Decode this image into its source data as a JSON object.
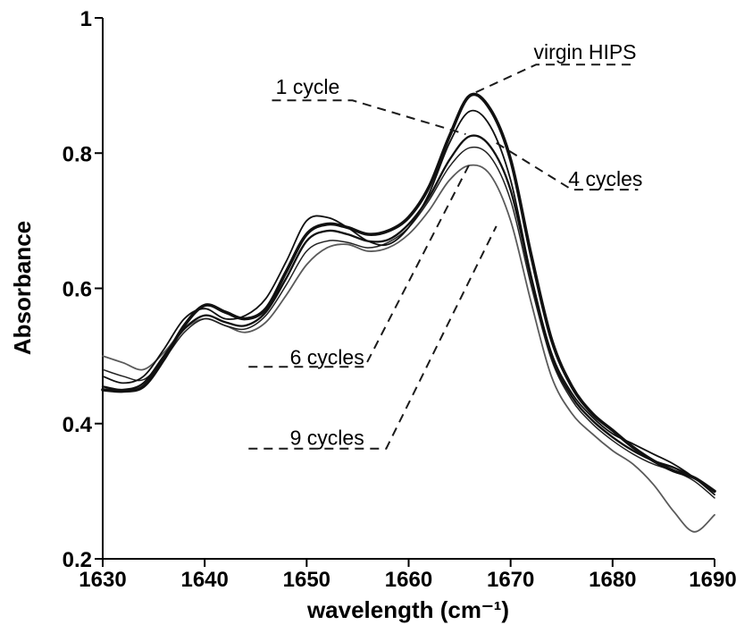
{
  "chart_data": {
    "type": "line",
    "title": "",
    "xlabel": "wavelength (cm⁻¹)",
    "ylabel": "Absorbance",
    "xlim": [
      1630,
      1690
    ],
    "ylim": [
      0.2,
      1.0
    ],
    "x_ticks": [
      1630,
      1640,
      1650,
      1660,
      1670,
      1680,
      1690
    ],
    "y_ticks": [
      0.2,
      0.4,
      0.6,
      0.8,
      1
    ],
    "y_tick_labels": [
      "0.2",
      "0.4",
      "0.6",
      "0.8",
      "1"
    ],
    "grid": false,
    "legend_position": "inline-annotations",
    "x": [
      1630,
      1632,
      1634,
      1636,
      1638,
      1640,
      1642,
      1644,
      1646,
      1648,
      1650,
      1652,
      1654,
      1656,
      1658,
      1660,
      1662,
      1664,
      1666,
      1668,
      1670,
      1672,
      1674,
      1676,
      1678,
      1680,
      1682,
      1684,
      1686,
      1688,
      1690
    ],
    "series": [
      {
        "name": "9 cycles",
        "color": "#5a5a5a",
        "width": 1.8,
        "values": [
          0.5,
          0.49,
          0.48,
          0.505,
          0.54,
          0.555,
          0.545,
          0.535,
          0.55,
          0.59,
          0.635,
          0.66,
          0.665,
          0.655,
          0.66,
          0.68,
          0.715,
          0.76,
          0.782,
          0.768,
          0.7,
          0.58,
          0.47,
          0.415,
          0.385,
          0.36,
          0.34,
          0.31,
          0.27,
          0.24,
          0.265
        ]
      },
      {
        "name": "6 cycles",
        "color": "#222222",
        "width": 1.5,
        "values": [
          0.48,
          0.47,
          0.465,
          0.495,
          0.535,
          0.555,
          0.545,
          0.54,
          0.56,
          0.605,
          0.655,
          0.67,
          0.668,
          0.66,
          0.668,
          0.69,
          0.73,
          0.78,
          0.808,
          0.795,
          0.73,
          0.605,
          0.495,
          0.435,
          0.4,
          0.375,
          0.355,
          0.34,
          0.33,
          0.315,
          0.29
        ]
      },
      {
        "name": "4 cycles",
        "color": "#111111",
        "width": 2.3,
        "values": [
          0.455,
          0.45,
          0.46,
          0.5,
          0.54,
          0.56,
          0.55,
          0.545,
          0.565,
          0.615,
          0.67,
          0.685,
          0.68,
          0.67,
          0.672,
          0.695,
          0.735,
          0.79,
          0.825,
          0.81,
          0.745,
          0.615,
          0.5,
          0.44,
          0.405,
          0.38,
          0.36,
          0.345,
          0.335,
          0.32,
          0.3
        ]
      },
      {
        "name": "1 cycle",
        "color": "#111111",
        "width": 1.8,
        "values": [
          0.47,
          0.46,
          0.47,
          0.51,
          0.555,
          0.57,
          0.555,
          0.56,
          0.585,
          0.64,
          0.7,
          0.705,
          0.69,
          0.67,
          0.665,
          0.69,
          0.74,
          0.815,
          0.862,
          0.84,
          0.76,
          0.62,
          0.505,
          0.445,
          0.41,
          0.385,
          0.37,
          0.355,
          0.34,
          0.32,
          0.295
        ]
      },
      {
        "name": "virgin HIPS",
        "color": "#111111",
        "width": 3.6,
        "values": [
          0.45,
          0.448,
          0.455,
          0.495,
          0.545,
          0.575,
          0.565,
          0.555,
          0.57,
          0.625,
          0.68,
          0.695,
          0.69,
          0.68,
          0.685,
          0.705,
          0.75,
          0.825,
          0.885,
          0.865,
          0.79,
          0.65,
          0.525,
          0.455,
          0.415,
          0.39,
          0.365,
          0.345,
          0.33,
          0.32,
          0.3
        ]
      }
    ],
    "annotations": [
      {
        "label": "1 cycle",
        "label_pos": [
          1650.1,
          0.898
        ],
        "leader": [
          [
            1646.6,
            0.878
          ],
          [
            1654.5,
            0.878
          ],
          [
            1665.6,
            0.828
          ]
        ]
      },
      {
        "label": "virgin HIPS",
        "label_pos": [
          1677.3,
          0.95
        ],
        "leader": [
          [
            1666.6,
            0.89
          ],
          [
            1672.5,
            0.931
          ],
          [
            1682.3,
            0.931
          ]
        ]
      },
      {
        "label": "4 cycles",
        "label_pos": [
          1679.3,
          0.762
        ],
        "leader": [
          [
            1668.6,
            0.815
          ],
          [
            1676.0,
            0.746
          ],
          [
            1682.5,
            0.746
          ]
        ]
      },
      {
        "label": "6 cycles",
        "label_pos": [
          1652.0,
          0.498
        ],
        "leader": [
          [
            1644.3,
            0.484
          ],
          [
            1655.7,
            0.484
          ],
          [
            1665.9,
            0.782
          ]
        ]
      },
      {
        "label": "9 cycles",
        "label_pos": [
          1652.0,
          0.379
        ],
        "leader": [
          [
            1644.3,
            0.363
          ],
          [
            1657.8,
            0.363
          ],
          [
            1668.6,
            0.692
          ]
        ]
      }
    ]
  }
}
